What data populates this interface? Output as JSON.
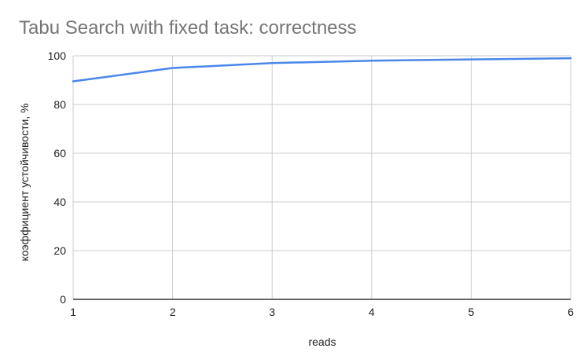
{
  "chart_data": {
    "type": "line",
    "title": "Tabu Search with fixed task: correctness",
    "xlabel": "reads",
    "ylabel": "коэффициент устойчивости, %",
    "x": [
      1,
      2,
      3,
      4,
      5,
      6
    ],
    "series": [
      {
        "values": [
          89.5,
          95,
          97,
          98,
          98.5,
          99
        ],
        "color": "#4a86e8"
      }
    ],
    "xlim": [
      1,
      6
    ],
    "ylim": [
      0,
      100
    ],
    "xticks": [
      "1",
      "2",
      "3",
      "4",
      "5",
      "6"
    ],
    "yticks": [
      "0",
      "20",
      "40",
      "60",
      "80",
      "100"
    ],
    "grid": true,
    "legend": "none"
  }
}
